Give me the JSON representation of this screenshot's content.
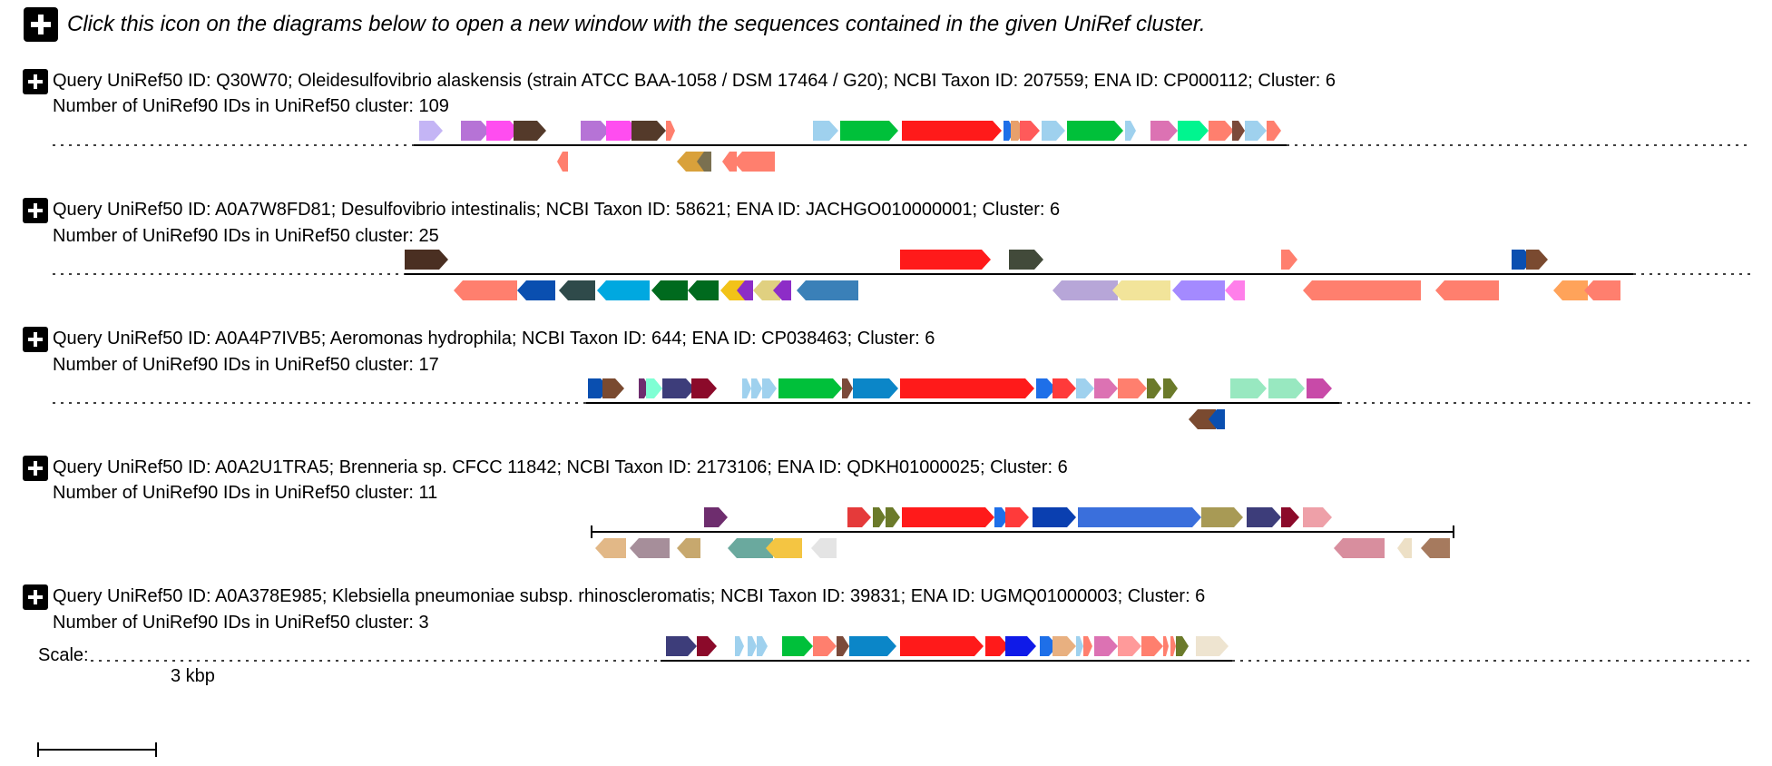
{
  "header": {
    "text": "Click this icon on the diagrams below to open a new window with the sequences contained in the given UniRef cluster.",
    "icon": "plus-square-icon"
  },
  "clusters": [
    {
      "query": "Query UniRef50 ID: Q30W70; Oleidesulfovibrio alaskensis (strain ATCC BAA-1058 / DSM 17464 / G20); NCBI Taxon ID: 207559; ENA ID: CP000112; Cluster: 6",
      "count": "Number of UniRef90 IDs in UniRef50 cluster: 109"
    },
    {
      "query": "Query UniRef50 ID: A0A7W8FD81; Desulfovibrio intestinalis; NCBI Taxon ID: 58621; ENA ID: JACHGO010000001; Cluster: 6",
      "count": "Number of UniRef90 IDs in UniRef50 cluster: 25"
    },
    {
      "query": "Query UniRef50 ID: A0A4P7IVB5; Aeromonas hydrophila; NCBI Taxon ID: 644; ENA ID: CP038463; Cluster: 6",
      "count": "Number of UniRef90 IDs in UniRef50 cluster: 17"
    },
    {
      "query": "Query UniRef50 ID: A0A2U1TRA5; Brenneria sp. CFCC 11842; NCBI Taxon ID: 2173106; ENA ID: QDKH01000025; Cluster: 6",
      "count": "Number of UniRef90 IDs in UniRef50 cluster: 11"
    },
    {
      "query": "Query UniRef50 ID: A0A378E985; Klebsiella pneumoniae subsp. rhinoscleromatis; NCBI Taxon ID: 39831; ENA ID: UGMQ01000003; Cluster: 6",
      "count": "Number of UniRef90 IDs in UniRef50 cluster: 3"
    }
  ],
  "scale": {
    "label": "Scale:",
    "value": "3 kbp"
  }
}
